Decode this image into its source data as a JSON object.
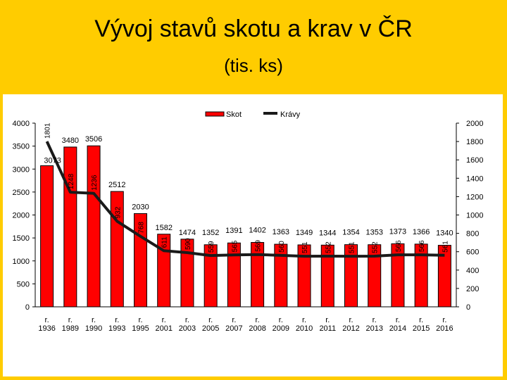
{
  "header": {
    "title": "Vývoj stavů skotu a krav v ČR",
    "subtitle": "(tis. ks)"
  },
  "colors": {
    "background": "#ffcc00",
    "bar": "#ff0000",
    "line": "#1a1a1a"
  },
  "chart_data": {
    "type": "bar",
    "title": "Vývoj stavů skotu a krav v ČR",
    "subtitle": "(tis. ks)",
    "categories": [
      [
        "r.",
        "1936"
      ],
      [
        "r.",
        "1989"
      ],
      [
        "r.",
        "1990"
      ],
      [
        "r.",
        "1993"
      ],
      [
        "r.",
        "1995"
      ],
      [
        "r.",
        "2001"
      ],
      [
        "r.",
        "2003"
      ],
      [
        "r.",
        "2005"
      ],
      [
        "r.",
        "2007"
      ],
      [
        "r.",
        "2008"
      ],
      [
        "r.",
        "2009"
      ],
      [
        "r.",
        "2010"
      ],
      [
        "r.",
        "2011"
      ],
      [
        "r.",
        "2012"
      ],
      [
        "r.",
        "2013"
      ],
      [
        "r.",
        "2014"
      ],
      [
        "r.",
        "2015"
      ],
      [
        "r.",
        "2016"
      ]
    ],
    "series": [
      {
        "name": "Skot",
        "type": "bar",
        "axis": "left",
        "values": [
          3073,
          3480,
          3506,
          2512,
          2030,
          1582,
          1474,
          1352,
          1391,
          1402,
          1363,
          1349,
          1344,
          1354,
          1353,
          1373,
          1366,
          1340
        ]
      },
      {
        "name": "Krávy",
        "type": "line",
        "axis": "right",
        "values": [
          1801,
          1248,
          1236,
          932,
          768,
          611,
          590,
          559,
          565,
          569,
          560,
          551,
          552,
          551,
          552,
          566,
          566,
          561
        ]
      }
    ],
    "y_left": {
      "min": 0,
      "max": 4000,
      "ticks": [
        0,
        500,
        1000,
        1500,
        2000,
        2500,
        3000,
        3500,
        4000
      ]
    },
    "y_right": {
      "min": 0,
      "max": 2000,
      "ticks": [
        0,
        200,
        400,
        600,
        800,
        1000,
        1200,
        1400,
        1600,
        1800,
        2000
      ]
    },
    "legend_position": "top",
    "grid": false
  }
}
